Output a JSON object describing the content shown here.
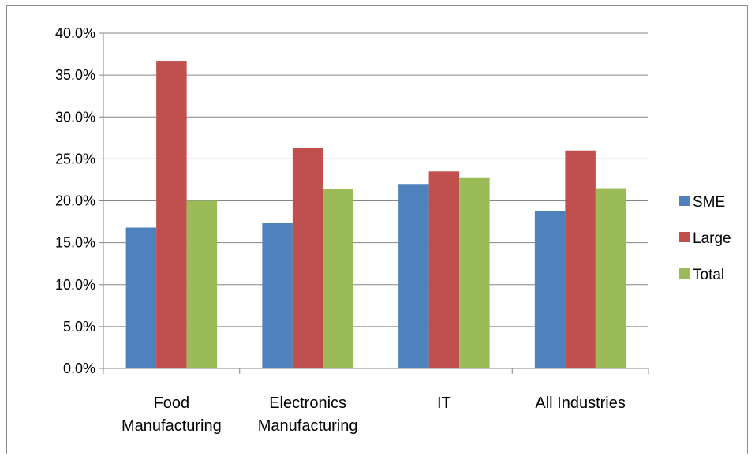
{
  "chart_data": {
    "type": "bar",
    "title": "",
    "xlabel": "",
    "ylabel": "",
    "categories": [
      [
        "Food",
        "Manufacturing"
      ],
      [
        "Electronics",
        "Manufacturing"
      ],
      [
        "IT"
      ],
      [
        "All Industries"
      ]
    ],
    "series": [
      {
        "name": "SME",
        "color": "#4f81bd",
        "values": [
          16.8,
          17.4,
          22.0,
          18.8
        ]
      },
      {
        "name": "Large",
        "color": "#c0504d",
        "values": [
          36.7,
          26.3,
          23.5,
          26.0
        ]
      },
      {
        "name": "Total",
        "color": "#9bbb59",
        "values": [
          20.0,
          21.4,
          22.8,
          21.5
        ]
      }
    ],
    "ylim": [
      0,
      40
    ],
    "yticks": [
      "0.0%",
      "5.0%",
      "10.0%",
      "15.0%",
      "20.0%",
      "25.0%",
      "30.0%",
      "35.0%",
      "40.0%"
    ],
    "grid": true,
    "legend_position": "right"
  }
}
